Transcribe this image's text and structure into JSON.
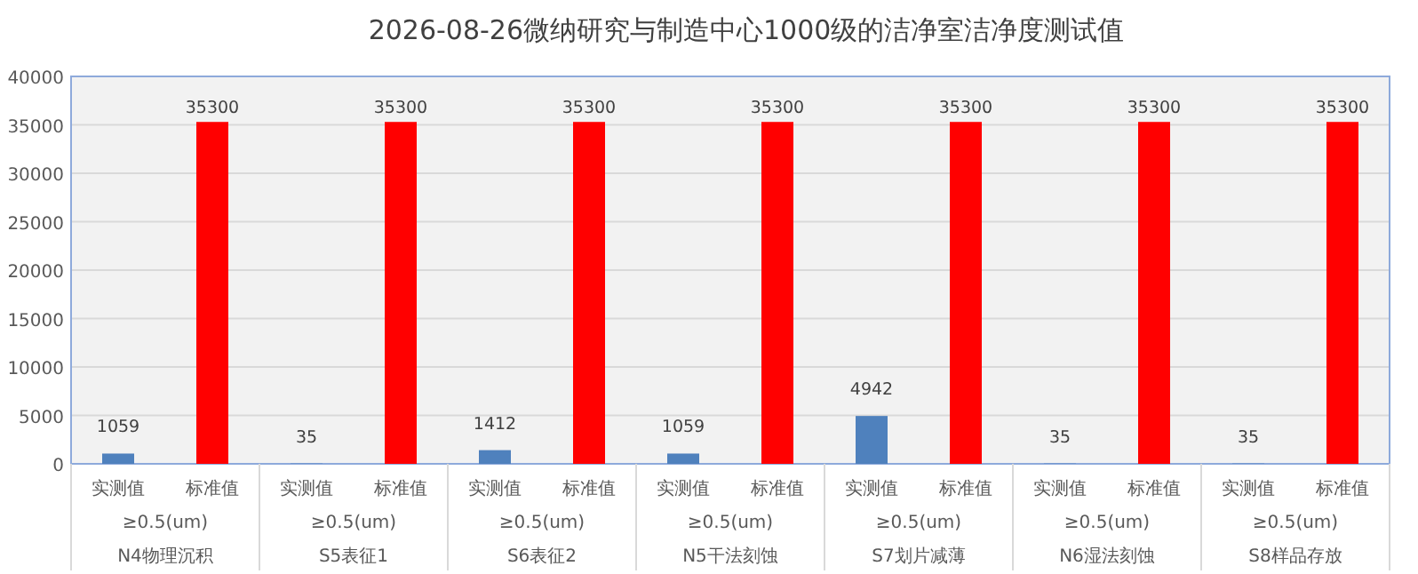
{
  "chart_data": {
    "type": "bar",
    "title": "2026-08-26微纳研究与制造中心1000级的洁净室洁净度测试值",
    "categories": [
      "实测值",
      "标准值",
      "实测值",
      "标准值",
      "实测值",
      "标准值",
      "实测值",
      "标准值",
      "实测值",
      "标准值",
      "实测值",
      "标准值",
      "实测值",
      "标准值"
    ],
    "values": [
      1059,
      35300,
      35,
      35300,
      1412,
      35300,
      1059,
      35300,
      4942,
      35300,
      35,
      35300,
      35,
      35300
    ],
    "colors": [
      "#4f81bd",
      "#ff0000",
      "#4f81bd",
      "#ff0000",
      "#4f81bd",
      "#ff0000",
      "#4f81bd",
      "#ff0000",
      "#4f81bd",
      "#ff0000",
      "#4f81bd",
      "#ff0000",
      "#4f81bd",
      "#ff0000"
    ],
    "annotations": [
      "≥0.5(um)",
      "N4物理沉积",
      "≥0.5(um)",
      "S5表征1",
      "≥0.5(um)",
      "S6表征2",
      "≥0.5(um)",
      "N5干法刻蚀",
      "≥0.5(um)",
      "S7划片减薄",
      "≥0.5(um)",
      "N6湿法刻蚀",
      "≥0.5(um)",
      "S8样品存放"
    ],
    "ylim": [
      0,
      40000
    ],
    "yticks": [
      0,
      5000,
      10000,
      15000,
      20000,
      25000,
      30000,
      35000,
      40000
    ],
    "grid": "y",
    "data_labels": true
  }
}
